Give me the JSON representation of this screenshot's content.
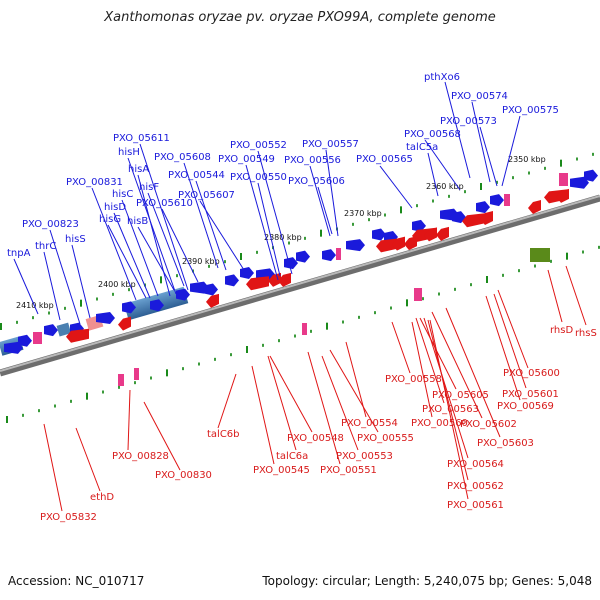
{
  "title": "Xanthomonas oryzae pv. oryzae PXO99A, complete genome",
  "footer": {
    "accession": "Accession: NC_010717",
    "summary": "Topology: circular; Length: 5,240,075 bp; Genes: 5,048"
  },
  "colors": {
    "forward": "#1a1adb",
    "reverse": "#e01515",
    "backbone": "#808080",
    "tick": "#1a8a1a"
  },
  "ruler": [
    "2350 kbp",
    "2360 kbp",
    "2370 kbp",
    "2380 kbp",
    "2390 kbp",
    "2400 kbp",
    "2410 kbp"
  ],
  "top_labels": [
    "pthXo6",
    "PXO_00574",
    "PXO_00573",
    "PXO_00575",
    "PXO_00568",
    "talC5a",
    "PXO_00565",
    "PXO_00557",
    "PXO_00552",
    "PXO_00556",
    "PXO_00549",
    "PXO_05606",
    "PXO_00550",
    "PXO_05611",
    "PXO_05608",
    "hisH",
    "PXO_00544",
    "hisA",
    "hisF",
    "PXO_05607",
    "PXO_00831",
    "hisC",
    "PXO_05610",
    "hisD",
    "hisG",
    "hisB",
    "PXO_00823",
    "thrC",
    "hisS",
    "tnpA"
  ],
  "bottom_labels": [
    "rhsD",
    "rhsS",
    "PXO_05600",
    "PXO_00558",
    "PXO_05601",
    "PXO_05605",
    "PXO_00569",
    "PXO_00563",
    "PXO_00554",
    "PXO_00560",
    "PXO_05602",
    "talC6b",
    "PXO_00548",
    "PXO_00555",
    "PXO_05603",
    "talC6a",
    "PXO_00553",
    "PXO_00828",
    "PXO_00545",
    "PXO_00551",
    "PXO_00564",
    "PXO_00830",
    "PXO_00562",
    "ethD",
    "PXO_00561",
    "PXO_05832"
  ]
}
